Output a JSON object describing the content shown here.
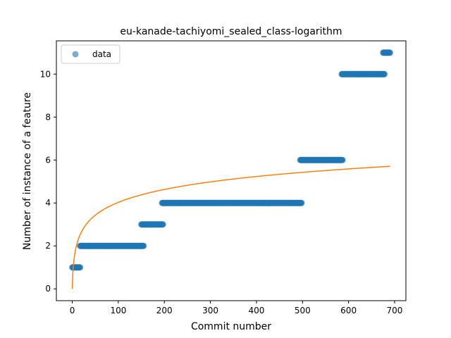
{
  "chart_data": {
    "type": "scatter",
    "title": "eu-kanade-tachiyomi_sealed_class-logarithm",
    "xlabel": "Commit number",
    "ylabel": "Number of instance of a feature",
    "xlim": [
      -34.5,
      724.5
    ],
    "ylim": [
      -0.55,
      11.55
    ],
    "xticks": [
      0,
      100,
      200,
      300,
      400,
      500,
      600,
      700
    ],
    "yticks": [
      0,
      2,
      4,
      6,
      8,
      10
    ],
    "legend": {
      "position": "upper-left",
      "entries": [
        "data"
      ]
    },
    "grid": false,
    "colors": {
      "data": "#1f77b4",
      "fit": "#ff7f0e"
    },
    "series": [
      {
        "name": "data",
        "kind": "scatter",
        "steps": [
          {
            "x_start": 0,
            "x_end": 17,
            "y": 1
          },
          {
            "x_start": 17,
            "x_end": 155,
            "y": 2
          },
          {
            "x_start": 150,
            "x_end": 197,
            "y": 3
          },
          {
            "x_start": 195,
            "x_end": 498,
            "y": 4
          },
          {
            "x_start": 495,
            "x_end": 587,
            "y": 6
          },
          {
            "x_start": 585,
            "x_end": 678,
            "y": 10
          },
          {
            "x_start": 675,
            "x_end": 690,
            "y": 11
          }
        ]
      },
      {
        "kind": "line",
        "model": "logarithmic",
        "formula": {
          "a": 0.873,
          "b": 0
        },
        "x_range": [
          0,
          690
        ]
      }
    ]
  }
}
